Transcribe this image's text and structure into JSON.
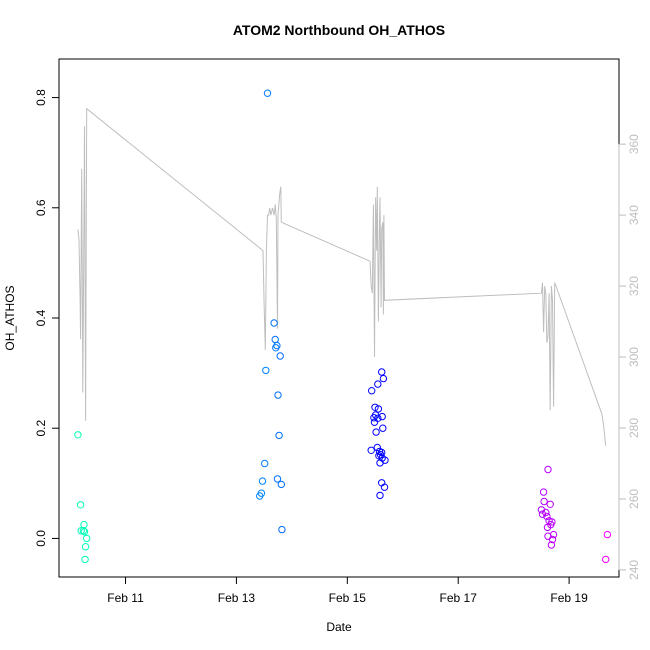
{
  "chart_data": {
    "type": "scatter",
    "title": "ATOM2 Northbound OH_ATHOS",
    "xlabel": "Date",
    "ylabel": "OH_ATHOS",
    "x_unit": "days in February",
    "xlim": [
      9.8,
      19.9
    ],
    "ylim": [
      -0.07,
      0.87
    ],
    "x_ticks": [
      {
        "value": 11,
        "label": "Feb 11"
      },
      {
        "value": 13,
        "label": "Feb 13"
      },
      {
        "value": 15,
        "label": "Feb 15"
      },
      {
        "value": 17,
        "label": "Feb 17"
      },
      {
        "value": 19,
        "label": "Feb 19"
      }
    ],
    "y_ticks": [
      {
        "value": 0.0,
        "label": "0.0"
      },
      {
        "value": 0.2,
        "label": "0.2"
      },
      {
        "value": 0.4,
        "label": "0.4"
      },
      {
        "value": 0.6,
        "label": "0.6"
      },
      {
        "value": 0.8,
        "label": "0.8"
      }
    ],
    "y2lim": [
      238,
      384
    ],
    "y2_ticks": [
      {
        "value": 240,
        "label": "240"
      },
      {
        "value": 260,
        "label": "260"
      },
      {
        "value": 280,
        "label": "280"
      },
      {
        "value": 300,
        "label": "300"
      },
      {
        "value": 320,
        "label": "320"
      },
      {
        "value": 340,
        "label": "340"
      },
      {
        "value": 360,
        "label": "360"
      }
    ],
    "grid": false,
    "series": [
      {
        "marker": "open-circle",
        "color_scale": "hue by date",
        "points": [
          {
            "x": 10.14,
            "y": 0.188
          },
          {
            "x": 10.19,
            "y": 0.061
          },
          {
            "x": 10.2,
            "y": 0.014
          },
          {
            "x": 10.24,
            "y": 0.014
          },
          {
            "x": 10.26,
            "y": 0.012
          },
          {
            "x": 10.25,
            "y": 0.025
          },
          {
            "x": 10.3,
            "y": 0.0
          },
          {
            "x": 10.28,
            "y": -0.015
          },
          {
            "x": 10.27,
            "y": -0.038
          },
          {
            "x": 13.56,
            "y": 0.808
          },
          {
            "x": 13.68,
            "y": 0.391
          },
          {
            "x": 13.7,
            "y": 0.361
          },
          {
            "x": 13.73,
            "y": 0.35
          },
          {
            "x": 13.71,
            "y": 0.346
          },
          {
            "x": 13.79,
            "y": 0.331
          },
          {
            "x": 13.53,
            "y": 0.305
          },
          {
            "x": 13.75,
            "y": 0.26
          },
          {
            "x": 13.77,
            "y": 0.187
          },
          {
            "x": 13.51,
            "y": 0.136
          },
          {
            "x": 13.74,
            "y": 0.108
          },
          {
            "x": 13.47,
            "y": 0.104
          },
          {
            "x": 13.81,
            "y": 0.098
          },
          {
            "x": 13.45,
            "y": 0.082
          },
          {
            "x": 13.42,
            "y": 0.077
          },
          {
            "x": 13.82,
            "y": 0.016
          },
          {
            "x": 15.62,
            "y": 0.302
          },
          {
            "x": 15.65,
            "y": 0.29
          },
          {
            "x": 15.55,
            "y": 0.28
          },
          {
            "x": 15.44,
            "y": 0.268
          },
          {
            "x": 15.5,
            "y": 0.238
          },
          {
            "x": 15.56,
            "y": 0.235
          },
          {
            "x": 15.51,
            "y": 0.224
          },
          {
            "x": 15.48,
            "y": 0.219
          },
          {
            "x": 15.55,
            "y": 0.218
          },
          {
            "x": 15.63,
            "y": 0.221
          },
          {
            "x": 15.49,
            "y": 0.211
          },
          {
            "x": 15.64,
            "y": 0.2
          },
          {
            "x": 15.52,
            "y": 0.193
          },
          {
            "x": 15.54,
            "y": 0.165
          },
          {
            "x": 15.43,
            "y": 0.16
          },
          {
            "x": 15.58,
            "y": 0.158
          },
          {
            "x": 15.62,
            "y": 0.156
          },
          {
            "x": 15.57,
            "y": 0.15
          },
          {
            "x": 15.6,
            "y": 0.152
          },
          {
            "x": 15.63,
            "y": 0.146
          },
          {
            "x": 15.68,
            "y": 0.142
          },
          {
            "x": 15.59,
            "y": 0.137
          },
          {
            "x": 15.62,
            "y": 0.101
          },
          {
            "x": 15.67,
            "y": 0.093
          },
          {
            "x": 15.59,
            "y": 0.078
          },
          {
            "x": 18.62,
            "y": 0.125
          },
          {
            "x": 18.54,
            "y": 0.084
          },
          {
            "x": 18.55,
            "y": 0.067
          },
          {
            "x": 18.66,
            "y": 0.062
          },
          {
            "x": 18.5,
            "y": 0.052
          },
          {
            "x": 18.58,
            "y": 0.047
          },
          {
            "x": 18.52,
            "y": 0.044
          },
          {
            "x": 18.6,
            "y": 0.04
          },
          {
            "x": 18.64,
            "y": 0.032
          },
          {
            "x": 18.69,
            "y": 0.03
          },
          {
            "x": 18.67,
            "y": 0.025
          },
          {
            "x": 18.61,
            "y": 0.02
          },
          {
            "x": 18.72,
            "y": 0.007
          },
          {
            "x": 18.62,
            "y": 0.004
          },
          {
            "x": 18.7,
            "y": -0.002
          },
          {
            "x": 18.68,
            "y": -0.012
          },
          {
            "x": 19.69,
            "y": 0.007
          },
          {
            "x": 19.66,
            "y": -0.038
          }
        ]
      },
      {
        "type": "line",
        "axis": "right",
        "color": "#bebebe",
        "points": [
          {
            "x": 10.14,
            "y": 336
          },
          {
            "x": 10.16,
            "y": 333
          },
          {
            "x": 10.18,
            "y": 316
          },
          {
            "x": 10.19,
            "y": 305
          },
          {
            "x": 10.21,
            "y": 353
          },
          {
            "x": 10.22,
            "y": 322
          },
          {
            "x": 10.23,
            "y": 290
          },
          {
            "x": 10.25,
            "y": 340
          },
          {
            "x": 10.26,
            "y": 365
          },
          {
            "x": 10.28,
            "y": 282
          },
          {
            "x": 10.3,
            "y": 370
          },
          {
            "x": 13.48,
            "y": 330
          },
          {
            "x": 13.5,
            "y": 315
          },
          {
            "x": 13.52,
            "y": 302
          },
          {
            "x": 13.54,
            "y": 330
          },
          {
            "x": 13.56,
            "y": 340
          },
          {
            "x": 13.58,
            "y": 340
          },
          {
            "x": 13.6,
            "y": 342
          },
          {
            "x": 13.62,
            "y": 340
          },
          {
            "x": 13.65,
            "y": 342
          },
          {
            "x": 13.68,
            "y": 340
          },
          {
            "x": 13.7,
            "y": 343
          },
          {
            "x": 13.72,
            "y": 339
          },
          {
            "x": 13.74,
            "y": 308
          },
          {
            "x": 13.75,
            "y": 340
          },
          {
            "x": 13.78,
            "y": 346
          },
          {
            "x": 13.8,
            "y": 348
          },
          {
            "x": 13.81,
            "y": 338
          },
          {
            "x": 15.41,
            "y": 327
          },
          {
            "x": 15.43,
            "y": 320
          },
          {
            "x": 15.45,
            "y": 318
          },
          {
            "x": 15.47,
            "y": 343
          },
          {
            "x": 15.49,
            "y": 300
          },
          {
            "x": 15.51,
            "y": 345
          },
          {
            "x": 15.53,
            "y": 330
          },
          {
            "x": 15.54,
            "y": 348
          },
          {
            "x": 15.56,
            "y": 310
          },
          {
            "x": 15.58,
            "y": 338
          },
          {
            "x": 15.59,
            "y": 345
          },
          {
            "x": 15.61,
            "y": 314
          },
          {
            "x": 15.62,
            "y": 336
          },
          {
            "x": 15.64,
            "y": 338
          },
          {
            "x": 15.65,
            "y": 312
          },
          {
            "x": 15.66,
            "y": 340
          },
          {
            "x": 15.67,
            "y": 316
          },
          {
            "x": 18.5,
            "y": 318
          },
          {
            "x": 18.52,
            "y": 321
          },
          {
            "x": 18.54,
            "y": 307
          },
          {
            "x": 18.56,
            "y": 320
          },
          {
            "x": 18.58,
            "y": 318
          },
          {
            "x": 18.6,
            "y": 304
          },
          {
            "x": 18.62,
            "y": 306
          },
          {
            "x": 18.64,
            "y": 318
          },
          {
            "x": 18.66,
            "y": 285
          },
          {
            "x": 18.68,
            "y": 320
          },
          {
            "x": 18.7,
            "y": 316
          },
          {
            "x": 18.72,
            "y": 286
          },
          {
            "x": 18.74,
            "y": 321
          },
          {
            "x": 19.59,
            "y": 284
          },
          {
            "x": 19.62,
            "y": 281
          },
          {
            "x": 19.66,
            "y": 275
          }
        ]
      }
    ]
  }
}
